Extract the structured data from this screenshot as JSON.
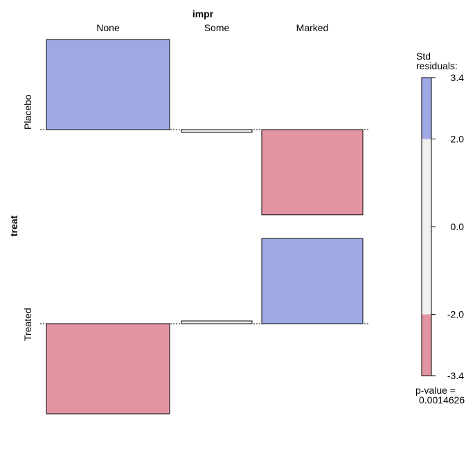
{
  "chart_data": {
    "type": "assoc",
    "col_variable": "impr",
    "row_variable": "treat",
    "columns": [
      "None",
      "Some",
      "Marked"
    ],
    "rows": [
      "Placebo",
      "Treated"
    ],
    "residuals": [
      [
        3.27,
        -0.1,
        -3.09
      ],
      [
        -3.27,
        0.1,
        3.09
      ]
    ],
    "legend": {
      "title_line1": "Std",
      "title_line2": "residuals:",
      "ticks": [
        "3.4",
        "2.0",
        "0.0",
        "-2.0",
        "-3.4"
      ],
      "tick_values": [
        3.4,
        2.0,
        0.0,
        -2.0,
        -3.4
      ],
      "range": [
        -3.4,
        3.4
      ],
      "p_label": "p-value =",
      "p_value": "0.0014626"
    },
    "colors": {
      "positive": "#9ea8e3",
      "negative": "#e394a3",
      "neutral": "#f0f0f0",
      "border": "#000000"
    }
  }
}
